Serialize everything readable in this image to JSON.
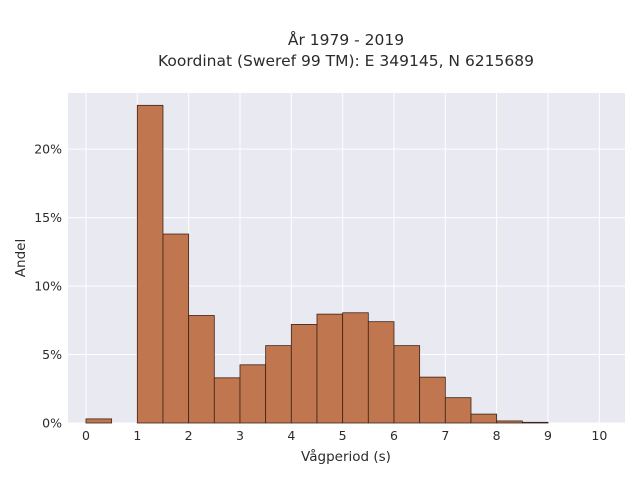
{
  "chart_data": {
    "type": "bar",
    "title_line1": "År 1979 - 2019",
    "title_line2": "Koordinat (Sweref 99 TM): E 349145, N 6215689",
    "xlabel": "Vågperiod (s)",
    "ylabel": "Andel",
    "bin_width": 0.5,
    "bins": [
      {
        "start": 0.0,
        "value": 0.3
      },
      {
        "start": 0.5,
        "value": 0.0
      },
      {
        "start": 1.0,
        "value": 23.2
      },
      {
        "start": 1.5,
        "value": 13.8
      },
      {
        "start": 2.0,
        "value": 7.85
      },
      {
        "start": 2.5,
        "value": 3.3
      },
      {
        "start": 3.0,
        "value": 4.25
      },
      {
        "start": 3.5,
        "value": 5.65
      },
      {
        "start": 4.0,
        "value": 7.2
      },
      {
        "start": 4.5,
        "value": 7.95
      },
      {
        "start": 5.0,
        "value": 8.05
      },
      {
        "start": 5.5,
        "value": 7.4
      },
      {
        "start": 6.0,
        "value": 5.65
      },
      {
        "start": 6.5,
        "value": 3.35
      },
      {
        "start": 7.0,
        "value": 1.85
      },
      {
        "start": 7.5,
        "value": 0.65
      },
      {
        "start": 8.0,
        "value": 0.15
      },
      {
        "start": 8.5,
        "value": 0.05
      }
    ],
    "xlim": [
      -0.35,
      10.5
    ],
    "ylim": [
      0,
      24.1
    ],
    "x_ticks": [
      0,
      1,
      2,
      3,
      4,
      5,
      6,
      7,
      8,
      9,
      10
    ],
    "x_tick_labels": [
      "0",
      "1",
      "2",
      "3",
      "4",
      "5",
      "6",
      "7",
      "8",
      "9",
      "10"
    ],
    "y_ticks": [
      0,
      5,
      10,
      15,
      20
    ],
    "y_tick_labels": [
      "0%",
      "5%",
      "10%",
      "15%",
      "20%"
    ],
    "grid": true,
    "colors": {
      "bar_fill": "#c0764f",
      "bar_edge": "#3d2316",
      "plot_bg": "#e9e9f1",
      "grid": "#ffffff"
    }
  }
}
